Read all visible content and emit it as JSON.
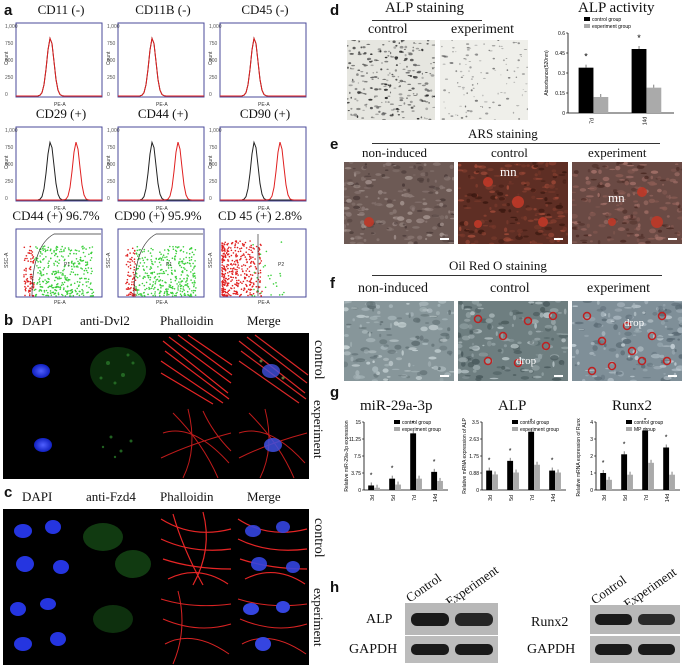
{
  "panel_labels": {
    "a": "a",
    "b": "b",
    "c": "c",
    "d": "d",
    "e": "e",
    "f": "f",
    "g": "g",
    "h": "h"
  },
  "a": {
    "histograms": [
      {
        "title": "CD11 (-)",
        "ctrl_peak": 2.0,
        "marker_peak": 2.0
      },
      {
        "title": "CD11B (-)",
        "ctrl_peak": 2.0,
        "marker_peak": 2.0
      },
      {
        "title": "CD45 (-)",
        "ctrl_peak": 2.0,
        "marker_peak": 2.0
      },
      {
        "title": "CD29 (+)",
        "ctrl_peak": 2.0,
        "marker_peak": 3.5
      },
      {
        "title": "CD44 (+)",
        "ctrl_peak": 2.0,
        "marker_peak": 3.5
      },
      {
        "title": "CD90 (+)",
        "ctrl_peak": 2.0,
        "marker_peak": 3.5
      }
    ],
    "hist_ylabel": "Count",
    "hist_xlabel": "PE-A",
    "scatters": [
      {
        "title": "CD44 (+) 96.7%",
        "gate": "P1"
      },
      {
        "title": "CD90 (+) 95.9%",
        "gate": "P1"
      },
      {
        "title": "CD 45 (+) 2.8%",
        "gate": "P2"
      }
    ],
    "scatter_ylabel": "SSC-A",
    "scatter_xlabel": "PE-A",
    "colors": {
      "ctrl": "#222222",
      "marker": "#e02020",
      "scatter_green": "#3ccf3c",
      "scatter_red": "#e02020"
    }
  },
  "b": {
    "columns": [
      "DAPI",
      "anti-Dvl2",
      "Phalloidin",
      "Merge"
    ],
    "rows": [
      "control",
      "experiment"
    ]
  },
  "c": {
    "columns": [
      "DAPI",
      "anti-Fzd4",
      "Phalloidin",
      "Merge"
    ],
    "rows": [
      "control",
      "experiment"
    ]
  },
  "d": {
    "staining_title": "ALP staining",
    "staining_cols": [
      "control",
      "experiment"
    ],
    "activity_title": "ALP activity",
    "chart_data": {
      "type": "bar",
      "title": "ALP activity",
      "ylabel": "Absorbance(520nm)",
      "categories": [
        "7d",
        "14d"
      ],
      "series": [
        {
          "name": "control group",
          "values": [
            0.34,
            0.48
          ]
        },
        {
          "name": "experiment group",
          "values": [
            0.12,
            0.19
          ]
        }
      ],
      "ylim": [
        0,
        0.6
      ],
      "significance": [
        "*",
        "*"
      ]
    }
  },
  "e": {
    "title": "ARS staining",
    "cols": [
      "non-induced",
      "control",
      "experiment"
    ],
    "annotations": [
      "mn",
      "mn"
    ]
  },
  "f": {
    "title": "Oil Red O staining",
    "cols": [
      "non-induced",
      "control",
      "experiment"
    ],
    "annotations": [
      "drop",
      "drop"
    ]
  },
  "g": {
    "chart_data": [
      {
        "type": "bar",
        "title": "miR-29a-3p",
        "ylabel": "Relative miR-29a-3p expression",
        "categories": [
          "3d",
          "5d",
          "7d",
          "14d"
        ],
        "series": [
          {
            "name": "control group",
            "values": [
              1.0,
              2.5,
              12.5,
              4.0
            ]
          },
          {
            "name": "experiment group",
            "values": [
              0.5,
              1.2,
              2.5,
              2.0
            ]
          }
        ],
        "ylim": [
          0,
          15
        ],
        "significance": [
          "*",
          "*",
          "*",
          "*"
        ]
      },
      {
        "type": "bar",
        "title": "ALP",
        "ylabel": "Relative mRNA expression of ALP",
        "categories": [
          "3d",
          "5d",
          "7d",
          "14d"
        ],
        "series": [
          {
            "name": "control group",
            "values": [
              1.0,
              1.5,
              3.0,
              1.0
            ]
          },
          {
            "name": "experiment group",
            "values": [
              0.8,
              0.9,
              1.3,
              0.9
            ]
          }
        ],
        "ylim": [
          0,
          3.5
        ],
        "significance": [
          "*",
          "*",
          "*",
          "*"
        ]
      },
      {
        "type": "bar",
        "title": "Runx2",
        "ylabel": "Relative mRNA expression of Runx2",
        "categories": [
          "3d",
          "5d",
          "7d",
          "14d"
        ],
        "series": [
          {
            "name": "control group",
            "values": [
              1.0,
              2.1,
              3.5,
              2.5
            ]
          },
          {
            "name": "MP group",
            "values": [
              0.6,
              0.9,
              1.6,
              0.9
            ]
          }
        ],
        "ylim": [
          0,
          4
        ],
        "significance": [
          "*",
          "*",
          "*",
          "*"
        ]
      }
    ]
  },
  "h": {
    "blot1": {
      "cols": [
        "Control",
        "Experiment"
      ],
      "rows": [
        "ALP",
        "GAPDH"
      ]
    },
    "blot2": {
      "cols": [
        "Control",
        "Experiment"
      ],
      "rows": [
        "Runx2",
        "GAPDH"
      ]
    }
  }
}
